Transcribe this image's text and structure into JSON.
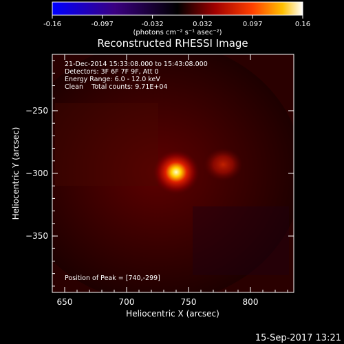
{
  "colorbar": {
    "ticks": [
      "-0.16",
      "-0.097",
      "-0.032",
      "0.032",
      "0.097",
      "0.16"
    ],
    "units": "(photons cm⁻² s⁻¹ asec⁻²)",
    "range": [
      -0.16,
      0.16
    ]
  },
  "chart_data": {
    "type": "heatmap",
    "title": "Reconstructed RHESSI Image",
    "xlabel": "Heliocentric X (arcsec)",
    "ylabel": "Heliocentric Y (arcsec)",
    "xlim": [
      640,
      835
    ],
    "ylim": [
      -395,
      -205
    ],
    "xticks": [
      650,
      700,
      750,
      800
    ],
    "yticks": [
      -250,
      -300,
      -350
    ],
    "sources": [
      {
        "x": 740,
        "y": -299,
        "peak": 0.16
      },
      {
        "x": 778,
        "y": -293,
        "peak": 0.07
      }
    ],
    "annotations": {
      "line1": "21-Dec-2014 15:33:08.000 to 15:43:08.000",
      "line2": "Detectors: 3F 6F 7F 9F, Att 0",
      "line3": "Energy Range: 6.0 - 12.0 keV",
      "line4": "Clean    Total counts: 9.71E+04",
      "peak": "Position of Peak = [740,-299]"
    }
  },
  "timestamp": "15-Sep-2017 13:21"
}
